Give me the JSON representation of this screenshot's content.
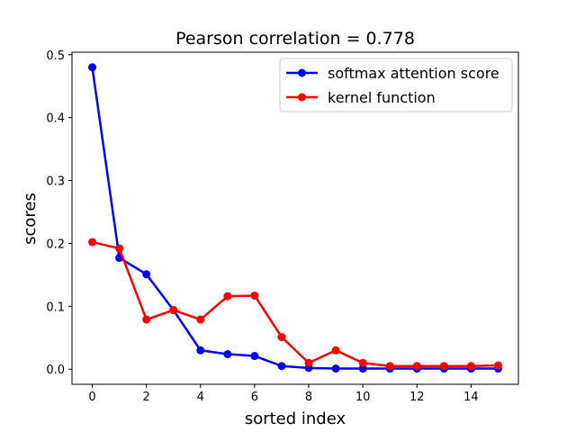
{
  "chart_data": {
    "type": "line",
    "title": "Pearson correlation =  0.778",
    "xlabel": "sorted index",
    "ylabel": "scores",
    "xlim": [
      -0.75,
      15.75
    ],
    "ylim": [
      -0.024,
      0.504
    ],
    "xticks": [
      0,
      2,
      4,
      6,
      8,
      10,
      12,
      14
    ],
    "yticks": [
      0.0,
      0.1,
      0.2,
      0.3,
      0.4,
      0.5
    ],
    "xtick_labels": [
      "0",
      "2",
      "4",
      "6",
      "8",
      "10",
      "12",
      "14"
    ],
    "ytick_labels": [
      "0.0",
      "0.1",
      "0.2",
      "0.3",
      "0.4",
      "0.5"
    ],
    "grid": false,
    "legend_position": "top-right",
    "x": [
      0,
      1,
      2,
      3,
      4,
      5,
      6,
      7,
      8,
      9,
      10,
      11,
      12,
      13,
      14,
      15
    ],
    "series": [
      {
        "name": "softmax attention score",
        "color": "#0000ff",
        "values": [
          0.48,
          0.177,
          0.151,
          0.094,
          0.03,
          0.024,
          0.021,
          0.005,
          0.002,
          0.001,
          0.001,
          0.001,
          0.001,
          0.001,
          0.001,
          0.001
        ]
      },
      {
        "name": "kernel function",
        "color": "#ff0000",
        "values": [
          0.202,
          0.192,
          0.079,
          0.094,
          0.079,
          0.116,
          0.117,
          0.051,
          0.01,
          0.03,
          0.01,
          0.005,
          0.005,
          0.005,
          0.005,
          0.006
        ]
      }
    ]
  }
}
